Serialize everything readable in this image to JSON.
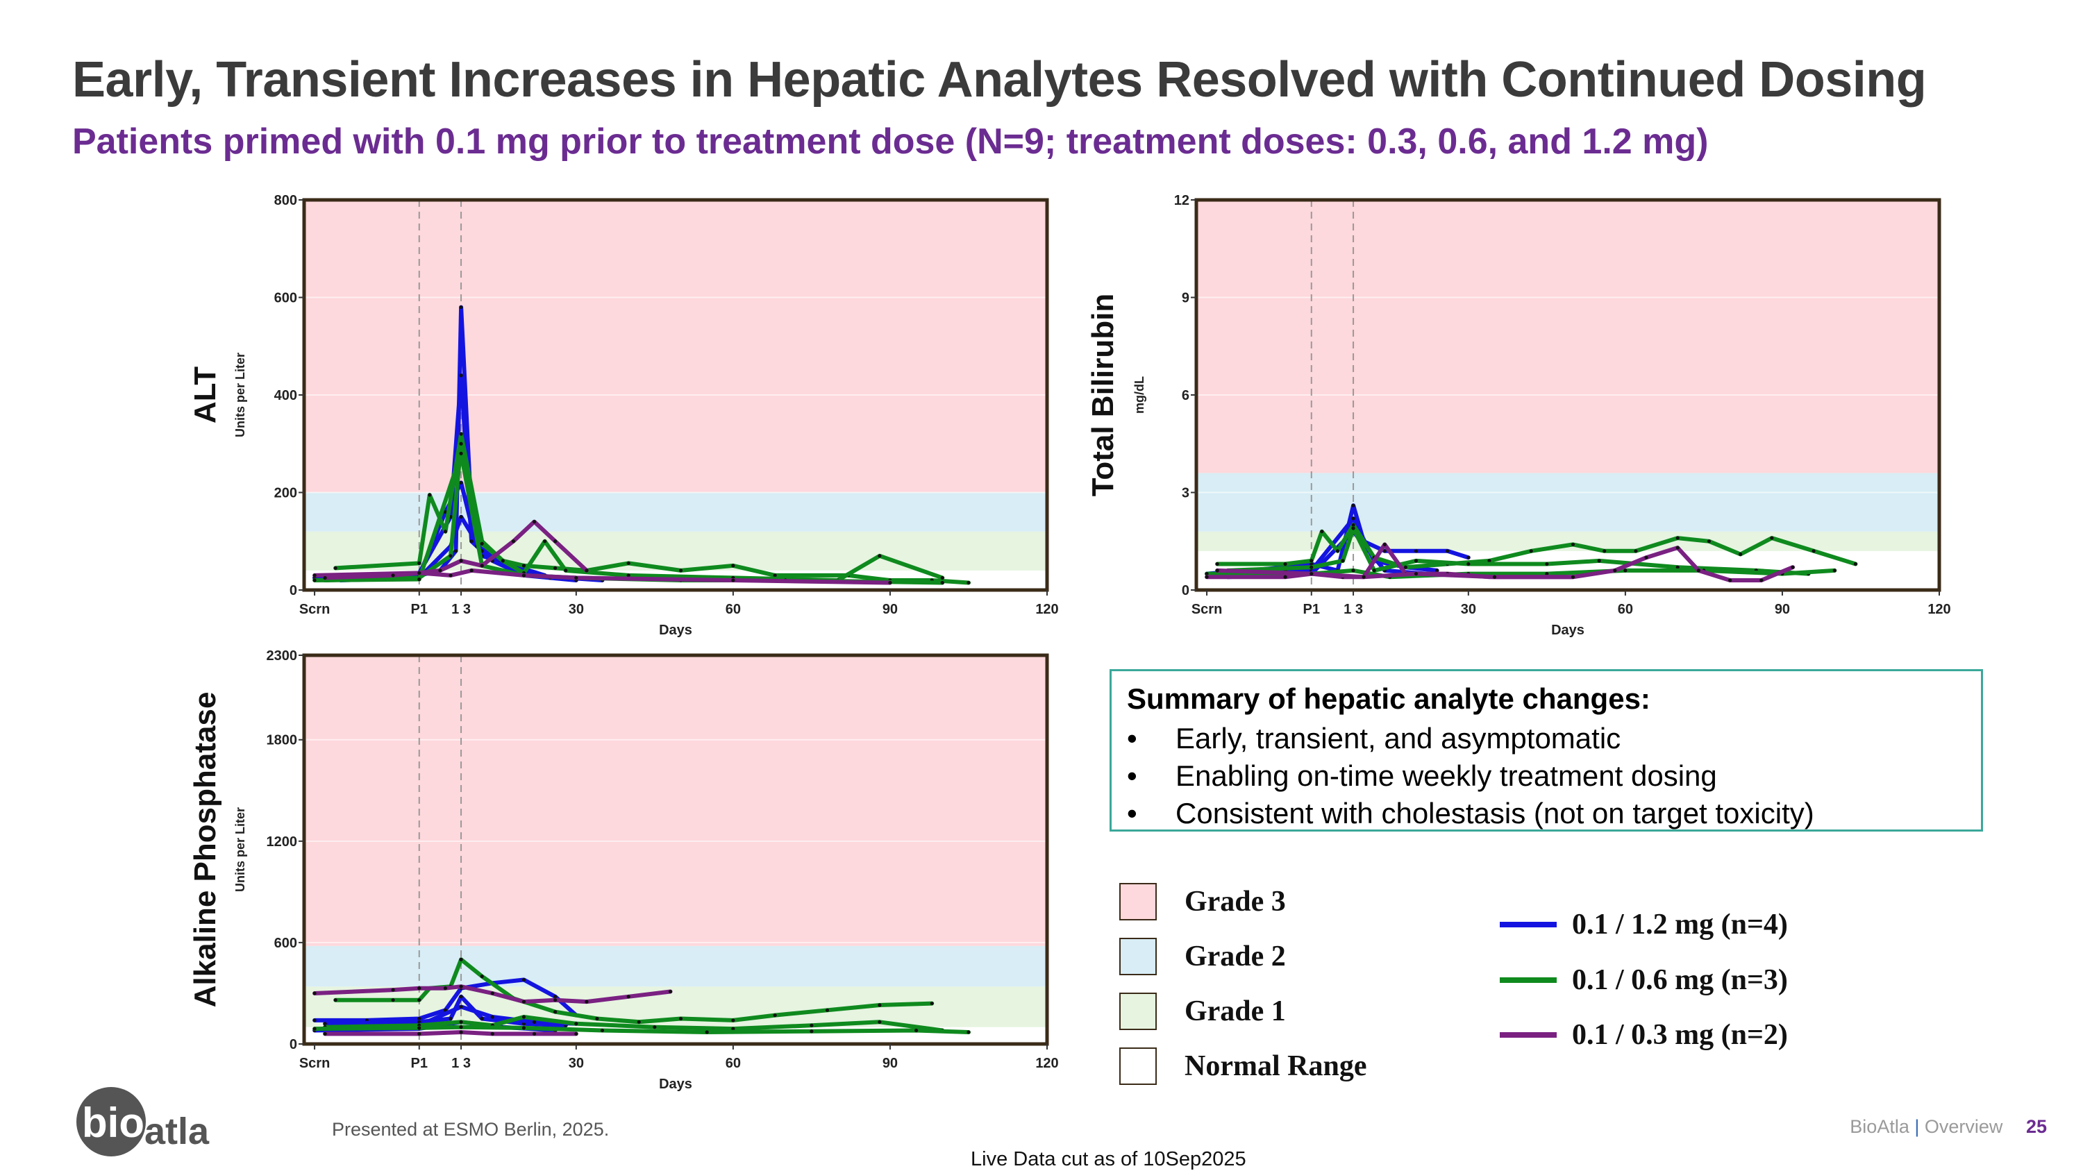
{
  "title": "Early, Transient Increases in Hepatic Analytes Resolved with Continued Dosing",
  "subtitle": "Patients primed with 0.1 mg prior to treatment dose (N=9; treatment doses: 0.3, 0.6, and 1.2 mg)",
  "colors": {
    "grade3": "#fdd8dc",
    "grade2": "#d8edf6",
    "grade1": "#e6f4e0",
    "normal": "#ffffff",
    "series_blue": "#1414e0",
    "series_green": "#0f8a1e",
    "series_purple": "#7a2182",
    "title": "#3b3b3b",
    "subtitle": "#6b2c91",
    "summary_border": "#3aa89a"
  },
  "summary": {
    "heading": "Summary of hepatic analyte changes:",
    "items": [
      "Early, transient, and asymptomatic",
      "Enabling on-time weekly treatment dosing",
      "Consistent with cholestasis (not on target toxicity)"
    ]
  },
  "legend": {
    "grades": [
      {
        "label": "Grade 3",
        "color": "#fdd8dc"
      },
      {
        "label": "Grade 2",
        "color": "#d8edf6"
      },
      {
        "label": "Grade 1",
        "color": "#e6f4e0"
      },
      {
        "label": "Normal Range",
        "color": "#ffffff"
      }
    ],
    "series": [
      {
        "label": "0.1 / 1.2 mg (n=4)",
        "color": "#1414e0"
      },
      {
        "label": "0.1 / 0.6 mg (n=3)",
        "color": "#0f8a1e"
      },
      {
        "label": "0.1 / 0.3 mg (n=2)",
        "color": "#7a2182"
      }
    ]
  },
  "footer": {
    "logo_text_a": "bio",
    "logo_text_b": "atla",
    "presented": "Presented at ESMO Berlin, 2025.",
    "data_cut": "Live Data cut as of 10Sep2025",
    "brand": "BioAtla",
    "separator": "|",
    "section": "Overview",
    "page": "25"
  },
  "chart_data": [
    {
      "id": "alt",
      "type": "line",
      "title": "ALT",
      "ylabel": "Units per Liter",
      "xlabel": "Days",
      "xlim": [
        -22,
        120
      ],
      "ylim": [
        0,
        800
      ],
      "yticks": [
        0,
        200,
        400,
        600,
        800
      ],
      "xticks": [
        {
          "v": -20,
          "l": "Scrn"
        },
        {
          "v": 0,
          "l": "P1"
        },
        {
          "v": 8,
          "l": "1 3"
        },
        {
          "v": 30,
          "l": "30"
        },
        {
          "v": 60,
          "l": "60"
        },
        {
          "v": 90,
          "l": "90"
        },
        {
          "v": 120,
          "l": "120"
        }
      ],
      "vlines": [
        0,
        8
      ],
      "bands": [
        {
          "grade": "Grade 1",
          "from": 40,
          "to": 120
        },
        {
          "grade": "Grade 2",
          "from": 120,
          "to": 200
        },
        {
          "grade": "Grade 3",
          "from": 200,
          "to": 800
        }
      ],
      "series": [
        {
          "group": "blue",
          "x": [
            -20,
            0,
            4,
            7,
            8,
            10,
            12,
            15,
            18,
            22,
            28,
            35
          ],
          "y": [
            25,
            30,
            40,
            80,
            580,
            150,
            70,
            60,
            40,
            30,
            25,
            20
          ]
        },
        {
          "group": "blue",
          "x": [
            -18,
            -5,
            0,
            6,
            8,
            10,
            14,
            20,
            30
          ],
          "y": [
            20,
            28,
            35,
            150,
            440,
            100,
            60,
            30,
            20
          ]
        },
        {
          "group": "blue",
          "x": [
            -20,
            -5,
            0,
            5,
            8,
            11,
            16,
            20,
            25
          ],
          "y": [
            25,
            28,
            30,
            160,
            220,
            90,
            60,
            40,
            25
          ]
        },
        {
          "group": "blue",
          "x": [
            -15,
            0,
            6,
            8,
            12,
            18,
            24
          ],
          "y": [
            20,
            25,
            90,
            150,
            80,
            50,
            30
          ]
        },
        {
          "group": "green",
          "x": [
            -16,
            0,
            2,
            5,
            8,
            12,
            16,
            20,
            26,
            32,
            40,
            50,
            60,
            68,
            82,
            90,
            98,
            105
          ],
          "y": [
            45,
            55,
            195,
            120,
            320,
            100,
            60,
            50,
            45,
            40,
            55,
            40,
            50,
            30,
            30,
            20,
            20,
            15
          ]
        },
        {
          "group": "green",
          "x": [
            -18,
            0,
            6,
            8,
            12,
            16,
            20,
            24,
            28,
            40,
            60,
            80,
            88,
            100
          ],
          "y": [
            20,
            25,
            70,
            300,
            95,
            60,
            35,
            100,
            40,
            30,
            25,
            20,
            70,
            25
          ]
        },
        {
          "group": "green",
          "x": [
            -20,
            0,
            8,
            12,
            20,
            30,
            50,
            70,
            100
          ],
          "y": [
            20,
            22,
            280,
            50,
            30,
            25,
            20,
            20,
            15
          ]
        },
        {
          "group": "purple",
          "x": [
            -20,
            0,
            4,
            8,
            12,
            18,
            22,
            26,
            32
          ],
          "y": [
            30,
            35,
            40,
            60,
            50,
            100,
            140,
            100,
            40
          ]
        },
        {
          "group": "purple",
          "x": [
            -18,
            -5,
            0,
            6,
            10,
            20,
            30,
            60,
            90
          ],
          "y": [
            25,
            30,
            35,
            30,
            40,
            30,
            25,
            20,
            15
          ]
        }
      ]
    },
    {
      "id": "bili",
      "type": "line",
      "title": "Total Bilirubin",
      "ylabel": "mg/dL",
      "xlabel": "Days",
      "xlim": [
        -22,
        120
      ],
      "ylim": [
        0,
        12
      ],
      "yticks": [
        0,
        3,
        6,
        9,
        12
      ],
      "xticks": [
        {
          "v": -20,
          "l": "Scrn"
        },
        {
          "v": 0,
          "l": "P1"
        },
        {
          "v": 8,
          "l": "1 3"
        },
        {
          "v": 30,
          "l": "30"
        },
        {
          "v": 60,
          "l": "60"
        },
        {
          "v": 90,
          "l": "90"
        },
        {
          "v": 120,
          "l": "120"
        }
      ],
      "vlines": [
        0,
        8
      ],
      "bands": [
        {
          "grade": "Grade 1",
          "from": 1.2,
          "to": 1.8
        },
        {
          "grade": "Grade 2",
          "from": 1.8,
          "to": 3.6
        },
        {
          "grade": "Grade 3",
          "from": 3.6,
          "to": 12
        }
      ],
      "series": [
        {
          "group": "blue",
          "x": [
            -20,
            -12,
            -5,
            0,
            5,
            8,
            10,
            14,
            20,
            26,
            30
          ],
          "y": [
            0.5,
            0.6,
            0.7,
            0.8,
            0.6,
            2.6,
            1.5,
            1.2,
            1.2,
            1.2,
            1.0
          ]
        },
        {
          "group": "blue",
          "x": [
            -18,
            -5,
            0,
            8,
            12,
            18,
            24
          ],
          "y": [
            0.5,
            0.6,
            0.6,
            2.2,
            0.9,
            0.7,
            0.6
          ]
        },
        {
          "group": "blue",
          "x": [
            -16,
            0,
            8,
            14,
            22
          ],
          "y": [
            0.4,
            0.5,
            1.8,
            0.6,
            0.5
          ]
        },
        {
          "group": "green",
          "x": [
            -18,
            -5,
            0,
            2,
            5,
            8,
            12,
            18,
            26,
            34,
            42,
            50,
            56,
            62,
            70,
            76,
            82,
            88,
            96,
            104
          ],
          "y": [
            0.8,
            0.8,
            0.9,
            1.8,
            1.2,
            2.0,
            1.0,
            0.7,
            0.8,
            0.9,
            1.2,
            1.4,
            1.2,
            1.2,
            1.6,
            1.5,
            1.1,
            1.6,
            1.2,
            0.8
          ]
        },
        {
          "group": "green",
          "x": [
            -16,
            0,
            6,
            8,
            12,
            20,
            30,
            45,
            55,
            70,
            85,
            95
          ],
          "y": [
            0.6,
            0.7,
            0.9,
            1.9,
            0.6,
            0.9,
            0.8,
            0.8,
            0.9,
            0.7,
            0.6,
            0.5
          ]
        },
        {
          "group": "green",
          "x": [
            -20,
            0,
            8,
            15,
            30,
            45,
            60,
            75,
            90,
            100
          ],
          "y": [
            0.5,
            0.5,
            0.6,
            0.4,
            0.5,
            0.5,
            0.6,
            0.6,
            0.5,
            0.6
          ]
        },
        {
          "group": "purple",
          "x": [
            -20,
            -5,
            0,
            6,
            10,
            14,
            18,
            26,
            34,
            42,
            50,
            58,
            64,
            70,
            74,
            80,
            86,
            92
          ],
          "y": [
            0.4,
            0.4,
            0.5,
            0.4,
            0.4,
            1.4,
            0.5,
            0.5,
            0.4,
            0.4,
            0.4,
            0.6,
            1.0,
            1.3,
            0.6,
            0.3,
            0.3,
            0.7
          ]
        },
        {
          "group": "purple",
          "x": [
            -18,
            0,
            10,
            20,
            35,
            50
          ],
          "y": [
            0.6,
            0.5,
            0.4,
            0.5,
            0.4,
            0.4
          ]
        }
      ]
    },
    {
      "id": "alp",
      "type": "line",
      "title": "Alkaline Phosphatase",
      "ylabel": "Units per Liter",
      "xlabel": "Days",
      "xlim": [
        -22,
        120
      ],
      "ylim": [
        0,
        2300
      ],
      "yticks": [
        0,
        600,
        1200,
        1800,
        2300
      ],
      "xticks": [
        {
          "v": -20,
          "l": "Scrn"
        },
        {
          "v": 0,
          "l": "P1"
        },
        {
          "v": 8,
          "l": "1 3"
        },
        {
          "v": 30,
          "l": "30"
        },
        {
          "v": 60,
          "l": "60"
        },
        {
          "v": 90,
          "l": "90"
        },
        {
          "v": 120,
          "l": "120"
        }
      ],
      "vlines": [
        0,
        8
      ],
      "bands": [
        {
          "grade": "Grade 1",
          "from": 100,
          "to": 340
        },
        {
          "grade": "Grade 2",
          "from": 340,
          "to": 580
        },
        {
          "grade": "Grade 3",
          "from": 580,
          "to": 2300
        }
      ],
      "series": [
        {
          "group": "blue",
          "x": [
            -20,
            -10,
            0,
            5,
            8,
            14,
            20,
            26,
            30
          ],
          "y": [
            140,
            140,
            150,
            200,
            330,
            360,
            380,
            280,
            170
          ]
        },
        {
          "group": "blue",
          "x": [
            -18,
            0,
            6,
            8,
            12,
            20,
            28
          ],
          "y": [
            120,
            130,
            150,
            280,
            150,
            120,
            110
          ]
        },
        {
          "group": "blue",
          "x": [
            -15,
            0,
            8,
            14,
            22,
            30
          ],
          "y": [
            100,
            110,
            220,
            160,
            130,
            120
          ]
        },
        {
          "group": "blue",
          "x": [
            -20,
            0,
            8,
            16,
            26
          ],
          "y": [
            80,
            90,
            130,
            100,
            80
          ]
        },
        {
          "group": "green",
          "x": [
            -16,
            -5,
            0,
            2,
            6,
            8,
            12,
            18,
            26,
            34,
            42,
            50,
            60,
            68,
            78,
            88,
            98
          ],
          "y": [
            260,
            260,
            260,
            330,
            340,
            500,
            400,
            270,
            190,
            150,
            130,
            150,
            140,
            170,
            200,
            230,
            240
          ]
        },
        {
          "group": "green",
          "x": [
            -18,
            0,
            8,
            14,
            20,
            30,
            45,
            60,
            75,
            88,
            100
          ],
          "y": [
            100,
            110,
            130,
            110,
            160,
            120,
            100,
            90,
            110,
            130,
            80
          ]
        },
        {
          "group": "green",
          "x": [
            -20,
            0,
            8,
            20,
            35,
            55,
            75,
            95,
            105
          ],
          "y": [
            90,
            95,
            100,
            95,
            80,
            70,
            75,
            80,
            70
          ]
        },
        {
          "group": "purple",
          "x": [
            -20,
            -5,
            0,
            5,
            8,
            14,
            20,
            26,
            32,
            40,
            48
          ],
          "y": [
            300,
            320,
            330,
            330,
            340,
            300,
            250,
            260,
            250,
            280,
            310
          ]
        },
        {
          "group": "purple",
          "x": [
            -18,
            0,
            8,
            14,
            22,
            30
          ],
          "y": [
            60,
            60,
            70,
            60,
            60,
            60
          ]
        }
      ]
    }
  ]
}
